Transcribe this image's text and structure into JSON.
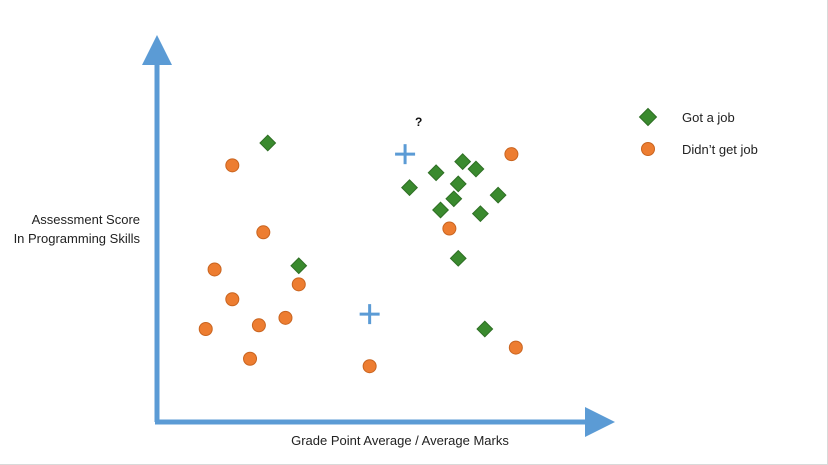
{
  "chart_data": {
    "type": "scatter",
    "xlabel": "Grade Point Average / Average Marks",
    "ylabel": [
      "Assessment Score",
      "In Programming Skills"
    ],
    "xlim": [
      0,
      100
    ],
    "ylim": [
      0,
      100
    ],
    "series": [
      {
        "name": "Got a job",
        "marker": "diamond",
        "color": "#3a8a2e",
        "points": [
          {
            "x": 25,
            "y": 75
          },
          {
            "x": 32,
            "y": 42
          },
          {
            "x": 57,
            "y": 63
          },
          {
            "x": 63,
            "y": 67
          },
          {
            "x": 64,
            "y": 57
          },
          {
            "x": 67,
            "y": 60
          },
          {
            "x": 68,
            "y": 64
          },
          {
            "x": 69,
            "y": 70
          },
          {
            "x": 72,
            "y": 68
          },
          {
            "x": 73,
            "y": 56
          },
          {
            "x": 68,
            "y": 44
          },
          {
            "x": 77,
            "y": 61
          },
          {
            "x": 74,
            "y": 25
          }
        ]
      },
      {
        "name": "Didn’t get job",
        "marker": "circle",
        "color": "#ed7d31",
        "points": [
          {
            "x": 17,
            "y": 69
          },
          {
            "x": 24,
            "y": 51
          },
          {
            "x": 13,
            "y": 41
          },
          {
            "x": 17,
            "y": 33
          },
          {
            "x": 32,
            "y": 37
          },
          {
            "x": 11,
            "y": 25
          },
          {
            "x": 23,
            "y": 26
          },
          {
            "x": 29,
            "y": 28
          },
          {
            "x": 21,
            "y": 17
          },
          {
            "x": 48,
            "y": 15
          },
          {
            "x": 66,
            "y": 52
          },
          {
            "x": 81,
            "y": 20
          },
          {
            "x": 80,
            "y": 72
          }
        ]
      }
    ],
    "annotations": [
      {
        "marker": "plus",
        "color": "#5b9bd5",
        "x": 56,
        "y": 72,
        "label": "?"
      },
      {
        "marker": "plus",
        "color": "#5b9bd5",
        "x": 48,
        "y": 29
      }
    ],
    "axis_color": "#5b9bd5",
    "legend": "right"
  }
}
